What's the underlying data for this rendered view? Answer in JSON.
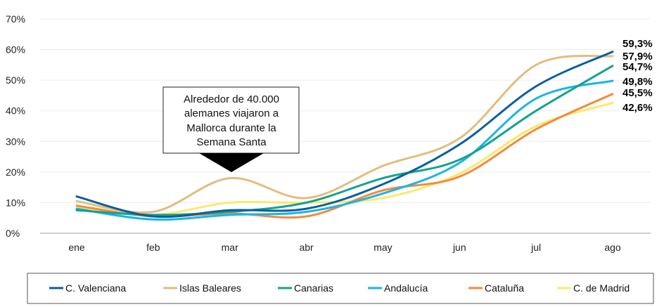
{
  "chart_data": {
    "type": "line",
    "categories": [
      "ene",
      "feb",
      "mar",
      "abr",
      "may",
      "jun",
      "jul",
      "ago"
    ],
    "ylim": [
      0,
      70
    ],
    "yticks": [
      0,
      10,
      20,
      30,
      40,
      50,
      60,
      70
    ],
    "ytick_labels": [
      "0%",
      "10%",
      "20%",
      "30%",
      "40%",
      "50%",
      "60%",
      "70%"
    ],
    "grid": true,
    "legend_position": "bottom",
    "series": [
      {
        "name": "C. Valenciana",
        "color": "#0a5f9e",
        "values": [
          12,
          5.5,
          7.5,
          8,
          16,
          29,
          48,
          59.3
        ],
        "end_label": "59,3%"
      },
      {
        "name": "Islas Baleares",
        "color": "#e2bd7f",
        "values": [
          10.5,
          7,
          18,
          11.5,
          22,
          31,
          55,
          57.9
        ],
        "end_label": "57,9%"
      },
      {
        "name": "Canarias",
        "color": "#13a38e",
        "values": [
          7.5,
          6,
          7,
          10,
          18,
          24,
          40,
          54.7
        ],
        "end_label": "54,7%"
      },
      {
        "name": "Andalucía",
        "color": "#1ab4ea",
        "values": [
          8,
          4.5,
          6,
          7,
          13,
          23,
          44,
          49.8
        ],
        "end_label": "49,8%"
      },
      {
        "name": "Cataluña",
        "color": "#f48a3c",
        "values": [
          9,
          5.5,
          6.5,
          5.5,
          14,
          18.5,
          34,
          45.5
        ],
        "end_label": "45,5%"
      },
      {
        "name": "C. de Madrid",
        "color": "#fbe96e",
        "values": [
          8.5,
          6,
          10,
          10,
          11.5,
          19.5,
          35,
          42.6
        ],
        "end_label": "42,6%"
      }
    ],
    "annotation": {
      "lines": [
        "Alrededor de 40.000",
        "alemanes viajaron a",
        "Mallorca durante la",
        "Semana Santa"
      ],
      "category": "mar"
    }
  }
}
